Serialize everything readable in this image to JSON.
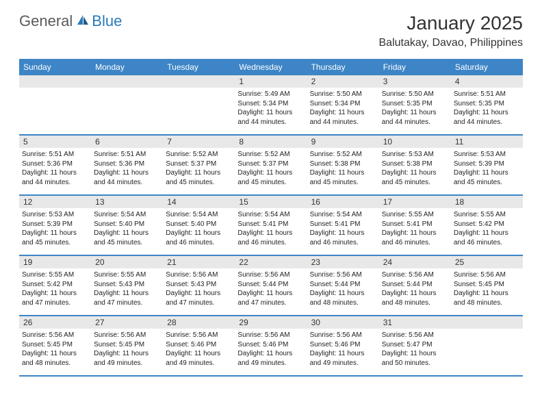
{
  "logo": {
    "text1": "General",
    "text2": "Blue"
  },
  "title": "January 2025",
  "location": "Balutakay, Davao, Philippines",
  "colors": {
    "header_bar": "#3d85c6",
    "day_bar": "#e8e8e8",
    "logo_gray": "#5a5a5a",
    "logo_blue": "#2a7ab8"
  },
  "weekdays": [
    "Sunday",
    "Monday",
    "Tuesday",
    "Wednesday",
    "Thursday",
    "Friday",
    "Saturday"
  ],
  "weeks": [
    [
      {
        "n": "",
        "sr": "",
        "ss": "",
        "dl": ""
      },
      {
        "n": "",
        "sr": "",
        "ss": "",
        "dl": ""
      },
      {
        "n": "",
        "sr": "",
        "ss": "",
        "dl": ""
      },
      {
        "n": "1",
        "sr": "Sunrise: 5:49 AM",
        "ss": "Sunset: 5:34 PM",
        "dl": "Daylight: 11 hours and 44 minutes."
      },
      {
        "n": "2",
        "sr": "Sunrise: 5:50 AM",
        "ss": "Sunset: 5:34 PM",
        "dl": "Daylight: 11 hours and 44 minutes."
      },
      {
        "n": "3",
        "sr": "Sunrise: 5:50 AM",
        "ss": "Sunset: 5:35 PM",
        "dl": "Daylight: 11 hours and 44 minutes."
      },
      {
        "n": "4",
        "sr": "Sunrise: 5:51 AM",
        "ss": "Sunset: 5:35 PM",
        "dl": "Daylight: 11 hours and 44 minutes."
      }
    ],
    [
      {
        "n": "5",
        "sr": "Sunrise: 5:51 AM",
        "ss": "Sunset: 5:36 PM",
        "dl": "Daylight: 11 hours and 44 minutes."
      },
      {
        "n": "6",
        "sr": "Sunrise: 5:51 AM",
        "ss": "Sunset: 5:36 PM",
        "dl": "Daylight: 11 hours and 44 minutes."
      },
      {
        "n": "7",
        "sr": "Sunrise: 5:52 AM",
        "ss": "Sunset: 5:37 PM",
        "dl": "Daylight: 11 hours and 45 minutes."
      },
      {
        "n": "8",
        "sr": "Sunrise: 5:52 AM",
        "ss": "Sunset: 5:37 PM",
        "dl": "Daylight: 11 hours and 45 minutes."
      },
      {
        "n": "9",
        "sr": "Sunrise: 5:52 AM",
        "ss": "Sunset: 5:38 PM",
        "dl": "Daylight: 11 hours and 45 minutes."
      },
      {
        "n": "10",
        "sr": "Sunrise: 5:53 AM",
        "ss": "Sunset: 5:38 PM",
        "dl": "Daylight: 11 hours and 45 minutes."
      },
      {
        "n": "11",
        "sr": "Sunrise: 5:53 AM",
        "ss": "Sunset: 5:39 PM",
        "dl": "Daylight: 11 hours and 45 minutes."
      }
    ],
    [
      {
        "n": "12",
        "sr": "Sunrise: 5:53 AM",
        "ss": "Sunset: 5:39 PM",
        "dl": "Daylight: 11 hours and 45 minutes."
      },
      {
        "n": "13",
        "sr": "Sunrise: 5:54 AM",
        "ss": "Sunset: 5:40 PM",
        "dl": "Daylight: 11 hours and 45 minutes."
      },
      {
        "n": "14",
        "sr": "Sunrise: 5:54 AM",
        "ss": "Sunset: 5:40 PM",
        "dl": "Daylight: 11 hours and 46 minutes."
      },
      {
        "n": "15",
        "sr": "Sunrise: 5:54 AM",
        "ss": "Sunset: 5:41 PM",
        "dl": "Daylight: 11 hours and 46 minutes."
      },
      {
        "n": "16",
        "sr": "Sunrise: 5:54 AM",
        "ss": "Sunset: 5:41 PM",
        "dl": "Daylight: 11 hours and 46 minutes."
      },
      {
        "n": "17",
        "sr": "Sunrise: 5:55 AM",
        "ss": "Sunset: 5:41 PM",
        "dl": "Daylight: 11 hours and 46 minutes."
      },
      {
        "n": "18",
        "sr": "Sunrise: 5:55 AM",
        "ss": "Sunset: 5:42 PM",
        "dl": "Daylight: 11 hours and 46 minutes."
      }
    ],
    [
      {
        "n": "19",
        "sr": "Sunrise: 5:55 AM",
        "ss": "Sunset: 5:42 PM",
        "dl": "Daylight: 11 hours and 47 minutes."
      },
      {
        "n": "20",
        "sr": "Sunrise: 5:55 AM",
        "ss": "Sunset: 5:43 PM",
        "dl": "Daylight: 11 hours and 47 minutes."
      },
      {
        "n": "21",
        "sr": "Sunrise: 5:56 AM",
        "ss": "Sunset: 5:43 PM",
        "dl": "Daylight: 11 hours and 47 minutes."
      },
      {
        "n": "22",
        "sr": "Sunrise: 5:56 AM",
        "ss": "Sunset: 5:44 PM",
        "dl": "Daylight: 11 hours and 47 minutes."
      },
      {
        "n": "23",
        "sr": "Sunrise: 5:56 AM",
        "ss": "Sunset: 5:44 PM",
        "dl": "Daylight: 11 hours and 48 minutes."
      },
      {
        "n": "24",
        "sr": "Sunrise: 5:56 AM",
        "ss": "Sunset: 5:44 PM",
        "dl": "Daylight: 11 hours and 48 minutes."
      },
      {
        "n": "25",
        "sr": "Sunrise: 5:56 AM",
        "ss": "Sunset: 5:45 PM",
        "dl": "Daylight: 11 hours and 48 minutes."
      }
    ],
    [
      {
        "n": "26",
        "sr": "Sunrise: 5:56 AM",
        "ss": "Sunset: 5:45 PM",
        "dl": "Daylight: 11 hours and 48 minutes."
      },
      {
        "n": "27",
        "sr": "Sunrise: 5:56 AM",
        "ss": "Sunset: 5:45 PM",
        "dl": "Daylight: 11 hours and 49 minutes."
      },
      {
        "n": "28",
        "sr": "Sunrise: 5:56 AM",
        "ss": "Sunset: 5:46 PM",
        "dl": "Daylight: 11 hours and 49 minutes."
      },
      {
        "n": "29",
        "sr": "Sunrise: 5:56 AM",
        "ss": "Sunset: 5:46 PM",
        "dl": "Daylight: 11 hours and 49 minutes."
      },
      {
        "n": "30",
        "sr": "Sunrise: 5:56 AM",
        "ss": "Sunset: 5:46 PM",
        "dl": "Daylight: 11 hours and 49 minutes."
      },
      {
        "n": "31",
        "sr": "Sunrise: 5:56 AM",
        "ss": "Sunset: 5:47 PM",
        "dl": "Daylight: 11 hours and 50 minutes."
      },
      {
        "n": "",
        "sr": "",
        "ss": "",
        "dl": ""
      }
    ]
  ]
}
